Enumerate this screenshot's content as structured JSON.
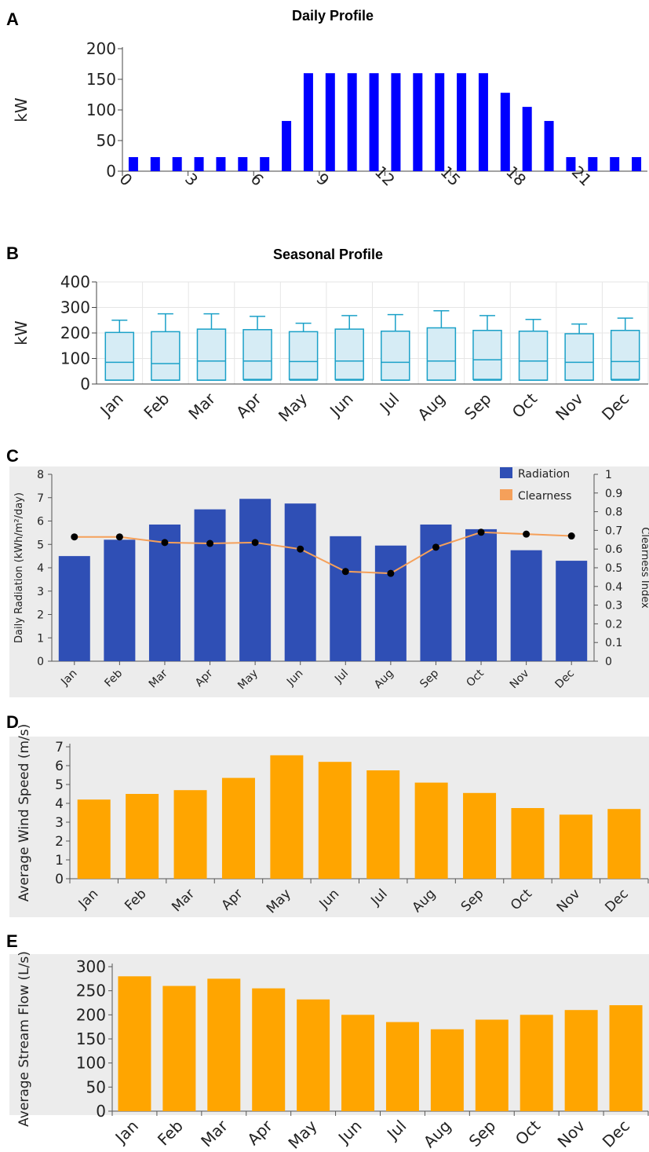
{
  "colors": {
    "daily_bar": "#0000ff",
    "box_stroke": "#1ba1c8",
    "box_fill": "#d6ecf5",
    "radiation": "#2f4fb5",
    "clearness_line": "#f5a05a",
    "clearness_marker": "#000000",
    "orange_bar": "#ffa500",
    "panel_bg": "#ececec"
  },
  "panels": {
    "a": {
      "letter": "A"
    },
    "b": {
      "letter": "B"
    },
    "c": {
      "letter": "C"
    },
    "d": {
      "letter": "D"
    },
    "e": {
      "letter": "E"
    }
  },
  "chart_data": [
    {
      "type": "bar",
      "title": "Daily Profile",
      "ylabel": "kW",
      "xlabel": "",
      "ylim": [
        0,
        200
      ],
      "yticks": [
        0,
        50,
        100,
        150,
        200
      ],
      "xticks": [
        "0",
        "3",
        "6",
        "9",
        "12",
        "15",
        "18",
        "21"
      ],
      "x": [
        0,
        1,
        2,
        3,
        4,
        5,
        6,
        7,
        8,
        9,
        10,
        11,
        12,
        13,
        14,
        15,
        16,
        17,
        18,
        19,
        20,
        21,
        22,
        23
      ],
      "values": [
        23,
        23,
        23,
        23,
        23,
        23,
        23,
        82,
        160,
        160,
        160,
        160,
        160,
        160,
        160,
        160,
        160,
        128,
        105,
        82,
        23,
        23,
        23,
        23
      ]
    },
    {
      "type": "box",
      "title": "Seasonal Profile",
      "ylabel": "kW",
      "ylim": [
        0,
        400
      ],
      "yticks": [
        0,
        100,
        200,
        300,
        400
      ],
      "categories": [
        "Jan",
        "Feb",
        "Mar",
        "Apr",
        "May",
        "Jun",
        "Jul",
        "Aug",
        "Sep",
        "Oct",
        "Nov",
        "Dec"
      ],
      "boxes": [
        {
          "min": 15,
          "q1": 15,
          "median": 85,
          "q3": 202,
          "max": 250
        },
        {
          "min": 15,
          "q1": 15,
          "median": 80,
          "q3": 205,
          "max": 275
        },
        {
          "min": 15,
          "q1": 15,
          "median": 90,
          "q3": 215,
          "max": 275
        },
        {
          "min": 15,
          "q1": 18,
          "median": 90,
          "q3": 213,
          "max": 265
        },
        {
          "min": 15,
          "q1": 18,
          "median": 88,
          "q3": 205,
          "max": 238
        },
        {
          "min": 15,
          "q1": 18,
          "median": 90,
          "q3": 215,
          "max": 268
        },
        {
          "min": 15,
          "q1": 15,
          "median": 85,
          "q3": 207,
          "max": 272
        },
        {
          "min": 15,
          "q1": 15,
          "median": 90,
          "q3": 220,
          "max": 287
        },
        {
          "min": 15,
          "q1": 18,
          "median": 95,
          "q3": 210,
          "max": 268
        },
        {
          "min": 15,
          "q1": 15,
          "median": 90,
          "q3": 207,
          "max": 253
        },
        {
          "min": 15,
          "q1": 15,
          "median": 85,
          "q3": 197,
          "max": 235
        },
        {
          "min": 15,
          "q1": 18,
          "median": 88,
          "q3": 210,
          "max": 258
        }
      ]
    },
    {
      "type": "bar+line",
      "ylabel": "Daily Radiation (kWh/m²/day)",
      "y2label": "Clearness Index",
      "ylim": [
        0,
        8
      ],
      "yticks": [
        0,
        1,
        2,
        3,
        4,
        5,
        6,
        7,
        8
      ],
      "y2lim": [
        0,
        1
      ],
      "y2ticks": [
        "0",
        "0.1",
        "0.2",
        "0.3",
        "0.4",
        "0.5",
        "0.6",
        "0.7",
        "0.8",
        "0.9",
        "1"
      ],
      "legend_position": "top-right",
      "categories": [
        "Jan",
        "Feb",
        "Mar",
        "Apr",
        "May",
        "Jun",
        "Jul",
        "Aug",
        "Sep",
        "Oct",
        "Nov",
        "Dec"
      ],
      "series": [
        {
          "name": "Radiation",
          "type": "bar",
          "values": [
            4.5,
            5.2,
            5.85,
            6.5,
            6.95,
            6.75,
            5.35,
            4.95,
            5.85,
            5.65,
            4.75,
            4.3
          ]
        },
        {
          "name": "Clearness",
          "type": "line",
          "values": [
            0.665,
            0.665,
            0.635,
            0.63,
            0.635,
            0.6,
            0.48,
            0.47,
            0.61,
            0.69,
            0.68,
            0.67
          ]
        }
      ]
    },
    {
      "type": "bar",
      "ylabel": "Average Wind Speed (m/s)",
      "ylim": [
        0,
        7
      ],
      "yticks": [
        0,
        1,
        2,
        3,
        4,
        5,
        6,
        7
      ],
      "categories": [
        "Jan",
        "Feb",
        "Mar",
        "Apr",
        "May",
        "Jun",
        "Jul",
        "Aug",
        "Sep",
        "Oct",
        "Nov",
        "Dec"
      ],
      "values": [
        4.2,
        4.5,
        4.7,
        5.35,
        6.55,
        6.2,
        5.75,
        5.1,
        4.55,
        3.75,
        3.4,
        3.7
      ]
    },
    {
      "type": "bar",
      "ylabel": "Average Stream Flow (L/s)",
      "ylim": [
        0,
        300
      ],
      "yticks": [
        0,
        50,
        100,
        150,
        200,
        250,
        300
      ],
      "categories": [
        "Jan",
        "Feb",
        "Mar",
        "Apr",
        "May",
        "Jun",
        "Jul",
        "Aug",
        "Sep",
        "Oct",
        "Nov",
        "Dec"
      ],
      "values": [
        280,
        260,
        275,
        255,
        232,
        200,
        185,
        170,
        190,
        200,
        210,
        220
      ]
    }
  ]
}
